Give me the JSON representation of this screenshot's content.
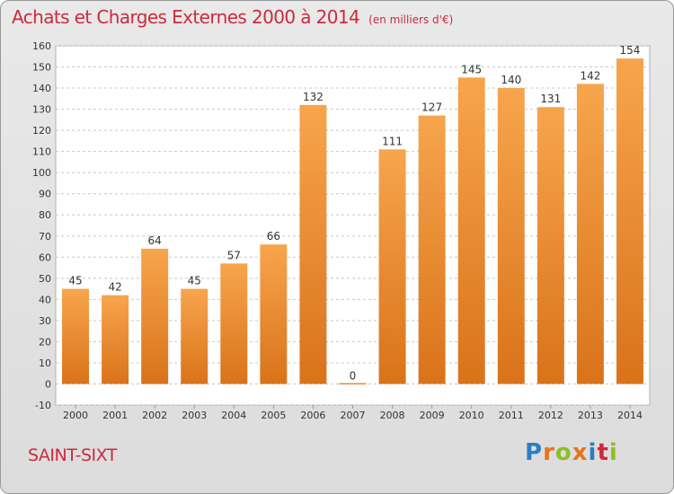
{
  "header": {
    "title": "Achats et Charges Externes 2000 à 2014",
    "subtitle": "(en milliers d'€)"
  },
  "footer": {
    "place_name": "SAINT-SIXT",
    "logo_letters": [
      "P",
      "r",
      "o",
      "x",
      "i",
      "t",
      "i"
    ],
    "logo_colors": [
      "#2a7fc4",
      "#e8731c",
      "#8cbf26",
      "#e8731c",
      "#2a7fc4",
      "#cc2a3c",
      "#8cbf26"
    ]
  },
  "colors": {
    "bar_top": "#f7a54d",
    "bar_bottom": "#d9731a",
    "accent": "#cc2a3c"
  },
  "chart_data": {
    "type": "bar",
    "title": "Achats et Charges Externes 2000 à 2014",
    "subtitle": "(en milliers d'€)",
    "xlabel": "",
    "ylabel": "",
    "categories": [
      "2000",
      "2001",
      "2002",
      "2003",
      "2004",
      "2005",
      "2006",
      "2007",
      "2008",
      "2009",
      "2010",
      "2011",
      "2012",
      "2013",
      "2014"
    ],
    "values": [
      45,
      42,
      64,
      45,
      57,
      66,
      132,
      0,
      111,
      127,
      145,
      140,
      131,
      142,
      154
    ],
    "data_labels": [
      "45",
      "42",
      "64",
      "45",
      "57",
      "66",
      "132",
      "0",
      "111",
      "127",
      "145",
      "140",
      "131",
      "142",
      "154"
    ],
    "ylim": [
      -10,
      160
    ],
    "yticks": [
      -10,
      0,
      10,
      20,
      30,
      40,
      50,
      60,
      70,
      80,
      90,
      100,
      110,
      120,
      130,
      140,
      150,
      160
    ],
    "grid": "horizontal-dashed",
    "legend": "none"
  }
}
